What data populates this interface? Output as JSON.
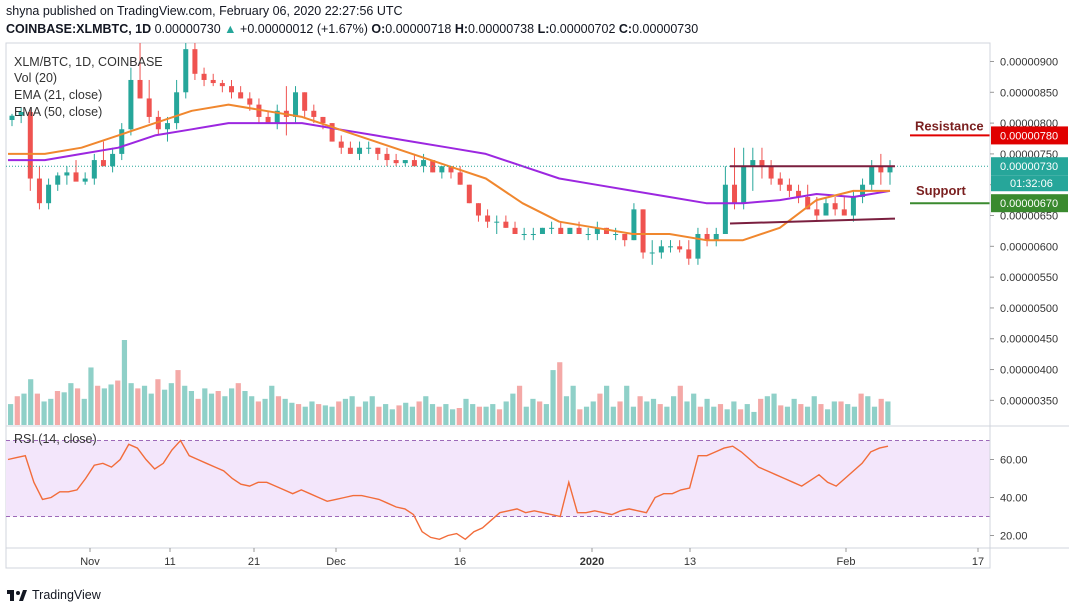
{
  "header": {
    "publisher": "shyna published on TradingView.com, February 06, 2020 22:27:56 UTC",
    "symbol": "COINBASE:XLMBTC, 1D",
    "last": "0.00000730",
    "up_arrow": "▲",
    "change": "+0.00000012 (+1.67%)",
    "o_label": "O:",
    "o": "0.00000718",
    "h_label": "H:",
    "h": "0.00000738",
    "l_label": "L:",
    "l": "0.00000702",
    "c_label": "C:",
    "c": "0.00000730"
  },
  "legend": {
    "title": "XLM/BTC, 1D, COINBASE",
    "vol": "Vol (20)",
    "ema21": "EMA (21, close)",
    "ema50": "EMA (50, close)",
    "rsi": "RSI (14, close)"
  },
  "footer": {
    "brand": "TradingView"
  },
  "colors": {
    "up": "#26a69a",
    "down": "#ef5350",
    "ema21": "#f0872e",
    "ema50": "#9c27e0",
    "resistance": "#e00000",
    "support": "#3a8a2f",
    "rsi_line": "#f26c3a",
    "rsi_band": "#f3e6fb",
    "rsi_band_line": "#9c69b8",
    "channel": "#7a1f3f",
    "last_price_bg": "#26a69a"
  },
  "chart_data": {
    "type": "candlestick",
    "symbol": "XLM/BTC",
    "interval": "1D",
    "exchange": "COINBASE",
    "price_axis_ticks": [
      "0.00000900",
      "0.00000850",
      "0.00000800",
      "0.00000750",
      "0.00000730",
      "0.00000700",
      "0.00000670",
      "0.00000650",
      "0.00000600",
      "0.00000550",
      "0.00000500",
      "0.00000450",
      "0.00000400",
      "0.00000350"
    ],
    "price_ylim": [
      3.1e-06,
      9.3e-06
    ],
    "x_ticks": [
      "Nov",
      "11",
      "21",
      "Dec",
      "16",
      "2020",
      "13",
      "Feb",
      "17"
    ],
    "countdown": "01:32:06",
    "last_price": 7.3e-06,
    "annotations": [
      {
        "text": "Resistance",
        "price_label": "0.00000780",
        "price": 7.8e-06
      },
      {
        "text": "Support",
        "price_label": "0.00000670",
        "price": 6.7e-06
      }
    ],
    "channel_lines": [
      {
        "from_price": 7.3e-06,
        "to_price": 7.3e-06
      },
      {
        "from_price": 6.37e-06,
        "to_price": 6.45e-06
      }
    ],
    "candles_ohlc": [
      [
        8.05e-06,
        8.15e-06,
        7.95e-06,
        8.12e-06
      ],
      [
        8.12e-06,
        8.25e-06,
        8e-06,
        8.18e-06
      ],
      [
        8.18e-06,
        8.22e-06,
        6.9e-06,
        7.1e-06
      ],
      [
        7.1e-06,
        7.3e-06,
        6.6e-06,
        6.7e-06
      ],
      [
        6.7e-06,
        7.1e-06,
        6.6e-06,
        7e-06
      ],
      [
        7e-06,
        7.2e-06,
        6.9e-06,
        7.15e-06
      ],
      [
        7.15e-06,
        7.3e-06,
        7e-06,
        7.2e-06
      ],
      [
        7.2e-06,
        7.4e-06,
        7.1e-06,
        7.05e-06
      ],
      [
        7.05e-06,
        7.2e-06,
        7e-06,
        7.1e-06
      ],
      [
        7.1e-06,
        7.5e-06,
        7e-06,
        7.4e-06
      ],
      [
        7.4e-06,
        7.7e-06,
        7.3e-06,
        7.3e-06
      ],
      [
        7.3e-06,
        7.6e-06,
        7.2e-06,
        7.5e-06
      ],
      [
        7.5e-06,
        8e-06,
        7.4e-06,
        7.9e-06
      ],
      [
        7.9e-06,
        8.9e-06,
        7.8e-06,
        8.7e-06
      ],
      [
        8.7e-06,
        9.3e-06,
        8.4e-06,
        8.4e-06
      ],
      [
        8.4e-06,
        8.7e-06,
        8e-06,
        8.1e-06
      ],
      [
        8.1e-06,
        8.2e-06,
        7.8e-06,
        7.9e-06
      ],
      [
        7.9e-06,
        8.1e-06,
        7.7e-06,
        8e-06
      ],
      [
        8e-06,
        8.7e-06,
        7.9e-06,
        8.5e-06
      ],
      [
        8.5e-06,
        9.3e-06,
        8.4e-06,
        9.2e-06
      ],
      [
        9.2e-06,
        9.3e-06,
        8.7e-06,
        8.8e-06
      ],
      [
        8.8e-06,
        8.9e-06,
        8.6e-06,
        8.7e-06
      ],
      [
        8.7e-06,
        8.8e-06,
        8.6e-06,
        8.65e-06
      ],
      [
        8.65e-06,
        8.7e-06,
        8.5e-06,
        8.6e-06
      ],
      [
        8.6e-06,
        8.7e-06,
        8.4e-06,
        8.5e-06
      ],
      [
        8.5e-06,
        8.6e-06,
        8.4e-06,
        8.4e-06
      ],
      [
        8.4e-06,
        8.5e-06,
        8.2e-06,
        8.3e-06
      ],
      [
        8.3e-06,
        8.4e-06,
        8e-06,
        8.1e-06
      ],
      [
        8.1e-06,
        8.2e-06,
        8e-06,
        8e-06
      ],
      [
        8e-06,
        8.3e-06,
        7.9e-06,
        8.2e-06
      ],
      [
        8.2e-06,
        8.6e-06,
        7.8e-06,
        8.1e-06
      ],
      [
        8.1e-06,
        8.6e-06,
        8e-06,
        8.5e-06
      ],
      [
        8.5e-06,
        8.5e-06,
        8.1e-06,
        8.2e-06
      ],
      [
        8.2e-06,
        8.3e-06,
        8e-06,
        8.1e-06
      ],
      [
        8.1e-06,
        8.1e-06,
        7.9e-06,
        8e-06
      ],
      [
        8e-06,
        8e-06,
        7.7e-06,
        7.7e-06
      ],
      [
        7.7e-06,
        7.8e-06,
        7.5e-06,
        7.6e-06
      ],
      [
        7.6e-06,
        7.7e-06,
        7.5e-06,
        7.5e-06
      ],
      [
        7.5e-06,
        7.7e-06,
        7.4e-06,
        7.6e-06
      ],
      [
        7.6e-06,
        7.7e-06,
        7.5e-06,
        7.6e-06
      ],
      [
        7.6e-06,
        7.6e-06,
        7.4e-06,
        7.5e-06
      ],
      [
        7.5e-06,
        7.6e-06,
        7.3e-06,
        7.4e-06
      ],
      [
        7.4e-06,
        7.5e-06,
        7.3e-06,
        7.35e-06
      ],
      [
        7.35e-06,
        7.4e-06,
        7.3e-06,
        7.4e-06
      ],
      [
        7.4e-06,
        7.5e-06,
        7.3e-06,
        7.3e-06
      ],
      [
        7.3e-06,
        7.5e-06,
        7.2e-06,
        7.4e-06
      ],
      [
        7.4e-06,
        7.4e-06,
        7.2e-06,
        7.2e-06
      ],
      [
        7.2e-06,
        7.3e-06,
        7.1e-06,
        7.3e-06
      ],
      [
        7.3e-06,
        7.3e-06,
        7.1e-06,
        7.2e-06
      ],
      [
        7.2e-06,
        7.3e-06,
        7e-06,
        7e-06
      ],
      [
        7e-06,
        7e-06,
        6.7e-06,
        6.7e-06
      ],
      [
        6.7e-06,
        6.7e-06,
        6.4e-06,
        6.5e-06
      ],
      [
        6.5e-06,
        6.6e-06,
        6.3e-06,
        6.4e-06
      ],
      [
        6.4e-06,
        6.5e-06,
        6.2e-06,
        6.4e-06
      ],
      [
        6.4e-06,
        6.5e-06,
        6.3e-06,
        6.3e-06
      ],
      [
        6.3e-06,
        6.4e-06,
        6.2e-06,
        6.2e-06
      ],
      [
        6.2e-06,
        6.3e-06,
        6.1e-06,
        6.2e-06
      ],
      [
        6.2e-06,
        6.3e-06,
        6.1e-06,
        6.2e-06
      ],
      [
        6.2e-06,
        6.3e-06,
        6.2e-06,
        6.3e-06
      ],
      [
        6.3e-06,
        6.4e-06,
        6.2e-06,
        6.3e-06
      ],
      [
        6.3e-06,
        6.4e-06,
        6.2e-06,
        6.2e-06
      ],
      [
        6.2e-06,
        6.3e-06,
        6.2e-06,
        6.3e-06
      ],
      [
        6.3e-06,
        6.4e-06,
        6.2e-06,
        6.2e-06
      ],
      [
        6.2e-06,
        6.3e-06,
        6.1e-06,
        6.2e-06
      ],
      [
        6.2e-06,
        6.4e-06,
        6.1e-06,
        6.3e-06
      ],
      [
        6.3e-06,
        6.3e-06,
        6.2e-06,
        6.2e-06
      ],
      [
        6.2e-06,
        6.3e-06,
        6.1e-06,
        6.2e-06
      ],
      [
        6.2e-06,
        6.2e-06,
        6e-06,
        6.1e-06
      ],
      [
        6.1e-06,
        6.7e-06,
        6.1e-06,
        6.6e-06
      ],
      [
        6.6e-06,
        6.6e-06,
        5.8e-06,
        5.9e-06
      ],
      [
        5.9e-06,
        6.1e-06,
        5.7e-06,
        5.9e-06
      ],
      [
        5.9e-06,
        6.1e-06,
        5.8e-06,
        6e-06
      ],
      [
        6e-06,
        6.1e-06,
        5.9e-06,
        6e-06
      ],
      [
        6e-06,
        6.1e-06,
        5.9e-06,
        5.95e-06
      ],
      [
        5.95e-06,
        6.1e-06,
        5.7e-06,
        5.8e-06
      ],
      [
        5.8e-06,
        6.3e-06,
        5.7e-06,
        6.2e-06
      ],
      [
        6.2e-06,
        6.3e-06,
        6e-06,
        6.1e-06
      ],
      [
        6.1e-06,
        6.3e-06,
        6e-06,
        6.2e-06
      ],
      [
        6.2e-06,
        7.3e-06,
        6.2e-06,
        7e-06
      ],
      [
        7e-06,
        7.6e-06,
        6.6e-06,
        6.7e-06
      ],
      [
        6.7e-06,
        7.6e-06,
        6.6e-06,
        7.3e-06
      ],
      [
        7.3e-06,
        7.6e-06,
        6.9e-06,
        7.4e-06
      ],
      [
        7.4e-06,
        7.6e-06,
        7.1e-06,
        7.3e-06
      ],
      [
        7.3e-06,
        7.4e-06,
        7e-06,
        7.1e-06
      ],
      [
        7.1e-06,
        7.2e-06,
        6.9e-06,
        7e-06
      ],
      [
        7e-06,
        7.1e-06,
        6.8e-06,
        6.9e-06
      ],
      [
        6.9e-06,
        7e-06,
        6.7e-06,
        6.8e-06
      ],
      [
        6.8e-06,
        7e-06,
        6.6e-06,
        6.6e-06
      ],
      [
        6.6e-06,
        6.8e-06,
        6.4e-06,
        6.5e-06
      ],
      [
        6.5e-06,
        6.8e-06,
        6.5e-06,
        6.7e-06
      ],
      [
        6.7e-06,
        6.8e-06,
        6.5e-06,
        6.6e-06
      ],
      [
        6.6e-06,
        6.8e-06,
        6.5e-06,
        6.5e-06
      ],
      [
        6.5e-06,
        6.9e-06,
        6.4e-06,
        6.8e-06
      ],
      [
        6.8e-06,
        7.1e-06,
        6.7e-06,
        7e-06
      ],
      [
        7e-06,
        7.4e-06,
        6.9e-06,
        7.3e-06
      ],
      [
        7.3e-06,
        7.5e-06,
        7e-06,
        7.2e-06
      ],
      [
        7.2e-06,
        7.4e-06,
        7e-06,
        7.3e-06
      ]
    ],
    "ema21": [
      7.5e-06,
      7.5e-06,
      7.6e-06,
      7.8e-06,
      8e-06,
      8.2e-06,
      8.3e-06,
      8.2e-06,
      8.1e-06,
      7.9e-06,
      7.7e-06,
      7.5e-06,
      7.3e-06,
      7.1e-06,
      6.7e-06,
      6.4e-06,
      6.3e-06,
      6.2e-06,
      6.2e-06,
      6.1e-06,
      6.1e-06,
      6.3e-06,
      6.75e-06,
      6.9e-06,
      6.9e-06
    ],
    "ema50": [
      7.4e-06,
      7.4e-06,
      7.5e-06,
      7.6e-06,
      7.8e-06,
      7.9e-06,
      8e-06,
      8e-06,
      8e-06,
      7.9e-06,
      7.8e-06,
      7.7e-06,
      7.6e-06,
      7.5e-06,
      7.3e-06,
      7.1e-06,
      7e-06,
      6.9e-06,
      6.8e-06,
      6.7e-06,
      6.7e-06,
      6.75e-06,
      6.85e-06,
      6.8e-06,
      6.9e-06
    ],
    "volume_series": [
      16,
      22,
      24,
      35,
      24,
      18,
      20,
      26,
      25,
      32,
      28,
      20,
      44,
      30,
      28,
      31,
      34,
      65,
      32,
      28,
      30,
      24,
      35,
      27,
      32,
      42,
      30,
      26,
      20,
      28,
      24,
      26,
      22,
      28,
      32,
      26,
      22,
      18,
      20,
      30,
      22,
      20,
      17,
      16,
      14,
      18,
      16,
      15,
      14,
      18,
      20,
      22,
      14,
      18,
      22,
      14,
      16,
      12,
      15,
      17,
      14,
      18,
      22,
      16,
      14,
      16,
      12,
      13,
      20,
      16,
      14,
      14,
      16,
      12,
      18,
      24,
      30,
      14,
      20,
      18,
      16,
      42,
      48,
      22,
      30,
      12,
      14,
      18,
      24,
      30,
      14,
      18,
      30,
      14,
      22,
      18,
      20,
      16,
      14,
      22,
      30,
      18,
      24,
      14,
      20,
      14,
      16,
      12,
      18,
      12,
      16,
      10,
      20,
      22,
      24,
      15,
      14,
      20,
      16,
      14,
      22,
      16,
      12,
      18,
      18,
      16,
      14,
      24,
      22,
      14,
      20,
      18
    ],
    "rsi": {
      "ylim": [
        15,
        75
      ],
      "levels": [
        70,
        30
      ],
      "ticks": [
        "60.00",
        "40.00",
        "20.00"
      ],
      "values": [
        60,
        61,
        62,
        48,
        39,
        40,
        43,
        43,
        44,
        50,
        57,
        58,
        56,
        60,
        68,
        66,
        60,
        55,
        58,
        65,
        70,
        62,
        60,
        58,
        56,
        54,
        50,
        47,
        46,
        48,
        48,
        46,
        44,
        42,
        44,
        42,
        40,
        38,
        39,
        40,
        41,
        41,
        40,
        39,
        37,
        35,
        34,
        31,
        22,
        19,
        18,
        20,
        21,
        18,
        22,
        24,
        28,
        32,
        33,
        34,
        32,
        33,
        32,
        31,
        30,
        48,
        32,
        32,
        33,
        32,
        31,
        33,
        34,
        33,
        32,
        40,
        42,
        42,
        44,
        45,
        62,
        62,
        64,
        66,
        67,
        64,
        60,
        56,
        54,
        52,
        50,
        48,
        46,
        49,
        52,
        48,
        46,
        50,
        54,
        58,
        64,
        66,
        67
      ]
    }
  }
}
